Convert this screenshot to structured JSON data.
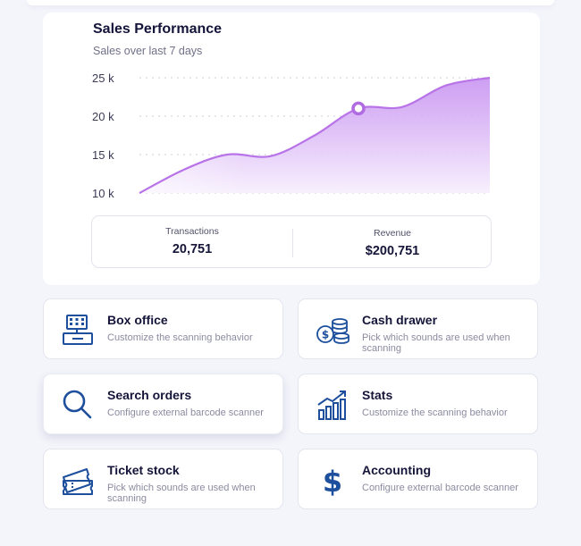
{
  "sales": {
    "title": "Sales Performance",
    "subtitle": "Sales over last 7 days",
    "transactions_label": "Transactions",
    "transactions_value": "20,751",
    "revenue_label": "Revenue",
    "revenue_value": "$200,751"
  },
  "chart_data": {
    "type": "area",
    "title": "Sales Performance",
    "subtitle": "Sales over last 7 days",
    "y_tick_labels": [
      "25 k",
      "20 k",
      "15 k",
      "10 k"
    ],
    "y_ticks": [
      25,
      20,
      15,
      10
    ],
    "ylim": [
      10,
      25
    ],
    "x": [
      0,
      1,
      2,
      3,
      4,
      5,
      6,
      7,
      8
    ],
    "values": [
      10,
      13,
      15,
      14.8,
      17.5,
      21,
      21.2,
      24,
      25
    ],
    "highlight_index": 5,
    "grid": true,
    "colors": {
      "line": "#b873e8",
      "fill_top": "#c99af0",
      "fill_bottom": "#f6eefd",
      "marker": "#b06be0"
    }
  },
  "tiles": [
    {
      "title": "Box office",
      "description": "Customize the scanning behavior",
      "icon": "cash-register-icon"
    },
    {
      "title": "Cash drawer",
      "description": "Pick which sounds are used when scanning",
      "icon": "coins-icon"
    },
    {
      "title": "Search orders",
      "description": "Configure external barcode scanner",
      "icon": "search-icon"
    },
    {
      "title": "Stats",
      "description": "Customize the scanning behavior",
      "icon": "bar-chart-icon"
    },
    {
      "title": "Ticket stock",
      "description": "Pick which sounds are used when scanning",
      "icon": "ticket-icon"
    },
    {
      "title": "Accounting",
      "description": "Configure external barcode scanner",
      "icon": "dollar-icon"
    }
  ],
  "colors": {
    "icon": "#1d4f9c",
    "accent": "#b873e8"
  }
}
